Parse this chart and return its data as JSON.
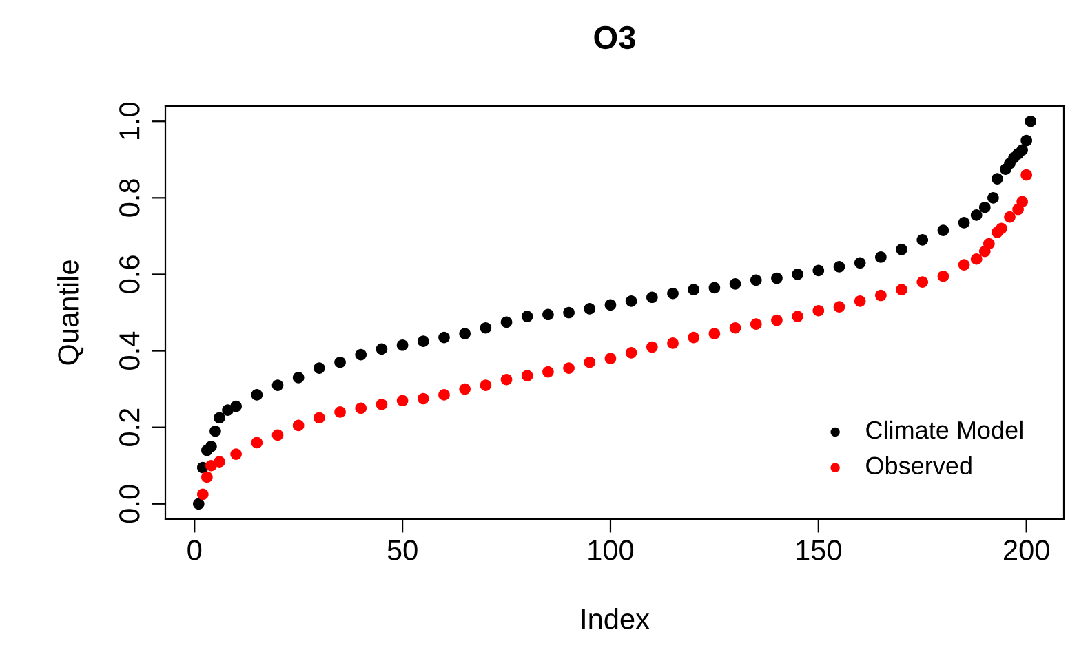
{
  "chart_data": {
    "type": "scatter",
    "title": "O3",
    "xlabel": "Index",
    "ylabel": "Quantile",
    "xlim": [
      -7,
      209
    ],
    "ylim": [
      -0.04,
      1.04
    ],
    "xticks": [
      0,
      50,
      100,
      150,
      200
    ],
    "yticks": [
      {
        "value": 0,
        "label": "0.0"
      },
      {
        "value": 0.2,
        "label": "0.2"
      },
      {
        "value": 0.4,
        "label": "0.4"
      },
      {
        "value": 0.6,
        "label": "0.6"
      },
      {
        "value": 0.8,
        "label": "0.8"
      },
      {
        "value": 1,
        "label": "1.0"
      }
    ],
    "grid": false,
    "legend": "bottom right",
    "marker": "circle",
    "series": [
      {
        "name": "Climate Model",
        "color": "#000000",
        "x": [
          1,
          2,
          3,
          4,
          5,
          6,
          8,
          10,
          15,
          20,
          25,
          30,
          35,
          40,
          45,
          50,
          55,
          60,
          65,
          70,
          75,
          80,
          85,
          90,
          95,
          100,
          105,
          110,
          115,
          120,
          125,
          130,
          135,
          140,
          145,
          150,
          155,
          160,
          165,
          170,
          175,
          180,
          185,
          188,
          190,
          192,
          193,
          195,
          196,
          197,
          198,
          199,
          200,
          201
        ],
        "values": [
          0.0,
          0.095,
          0.14,
          0.15,
          0.19,
          0.225,
          0.245,
          0.255,
          0.285,
          0.31,
          0.33,
          0.355,
          0.37,
          0.39,
          0.405,
          0.415,
          0.425,
          0.435,
          0.445,
          0.46,
          0.475,
          0.49,
          0.495,
          0.5,
          0.51,
          0.52,
          0.53,
          0.54,
          0.55,
          0.56,
          0.565,
          0.575,
          0.585,
          0.59,
          0.6,
          0.61,
          0.62,
          0.63,
          0.645,
          0.665,
          0.69,
          0.715,
          0.735,
          0.755,
          0.775,
          0.8,
          0.85,
          0.875,
          0.89,
          0.905,
          0.915,
          0.925,
          0.95,
          1.0
        ]
      },
      {
        "name": "Observed",
        "color": "#ff0000",
        "x": [
          2,
          3,
          4,
          6,
          10,
          15,
          20,
          25,
          30,
          35,
          40,
          45,
          50,
          55,
          60,
          65,
          70,
          75,
          80,
          85,
          90,
          95,
          100,
          105,
          110,
          115,
          120,
          125,
          130,
          135,
          140,
          145,
          150,
          155,
          160,
          165,
          170,
          175,
          180,
          185,
          188,
          190,
          191,
          193,
          194,
          196,
          198,
          199,
          200
        ],
        "values": [
          0.025,
          0.07,
          0.1,
          0.11,
          0.13,
          0.16,
          0.18,
          0.205,
          0.225,
          0.24,
          0.25,
          0.26,
          0.27,
          0.275,
          0.285,
          0.3,
          0.31,
          0.325,
          0.335,
          0.345,
          0.355,
          0.37,
          0.38,
          0.395,
          0.41,
          0.42,
          0.435,
          0.445,
          0.46,
          0.47,
          0.48,
          0.49,
          0.505,
          0.515,
          0.53,
          0.545,
          0.56,
          0.58,
          0.595,
          0.625,
          0.64,
          0.66,
          0.68,
          0.71,
          0.72,
          0.75,
          0.77,
          0.79,
          0.86
        ]
      }
    ]
  }
}
